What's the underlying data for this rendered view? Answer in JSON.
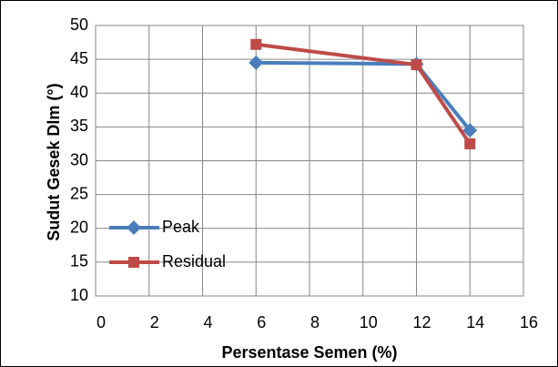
{
  "chart_data": {
    "type": "line",
    "x_label": "Persentase Semen (%)",
    "y_label": "Sudut Gesek Dlm (°)",
    "x": [
      6,
      12,
      14
    ],
    "series": [
      {
        "name": "Peak",
        "color": "#4a7ebb",
        "marker": "diamond",
        "values": [
          44.5,
          44.3,
          34.5
        ]
      },
      {
        "name": "Residual",
        "color": "#be4b48",
        "marker": "square",
        "values": [
          47.2,
          44.2,
          32.5
        ]
      }
    ],
    "xlim": [
      0,
      16
    ],
    "xticks": [
      0,
      2,
      4,
      6,
      8,
      10,
      12,
      14,
      16
    ],
    "ylim": [
      10,
      50
    ],
    "yticks": [
      10,
      15,
      20,
      25,
      30,
      35,
      40,
      45,
      50
    ],
    "grid": true,
    "legend": "lower left"
  }
}
